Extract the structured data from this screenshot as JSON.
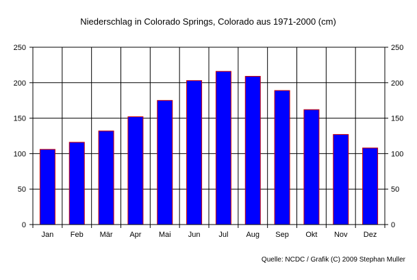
{
  "chart_data": {
    "type": "bar",
    "title": "Niederschlag in Colorado Springs, Colorado aus 1971-2000 (cm)",
    "categories": [
      "Jan",
      "Feb",
      "Mär",
      "Apr",
      "Mai",
      "Jun",
      "Jul",
      "Aug",
      "Sep",
      "Okt",
      "Nov",
      "Dez"
    ],
    "values": [
      106,
      116,
      132,
      152,
      175,
      203,
      216,
      209,
      189,
      162,
      127,
      108
    ],
    "ylim": [
      0,
      250
    ],
    "yticks": [
      "0",
      "50",
      "100",
      "150",
      "200",
      "250"
    ],
    "xlabel": "",
    "ylabel": "",
    "grid": true,
    "bar_color": "#0000ff",
    "bar_edge_color": "#cc0000",
    "source": "Quelle: NCDC / Grafik (C) 2009 Stephan Muller"
  }
}
